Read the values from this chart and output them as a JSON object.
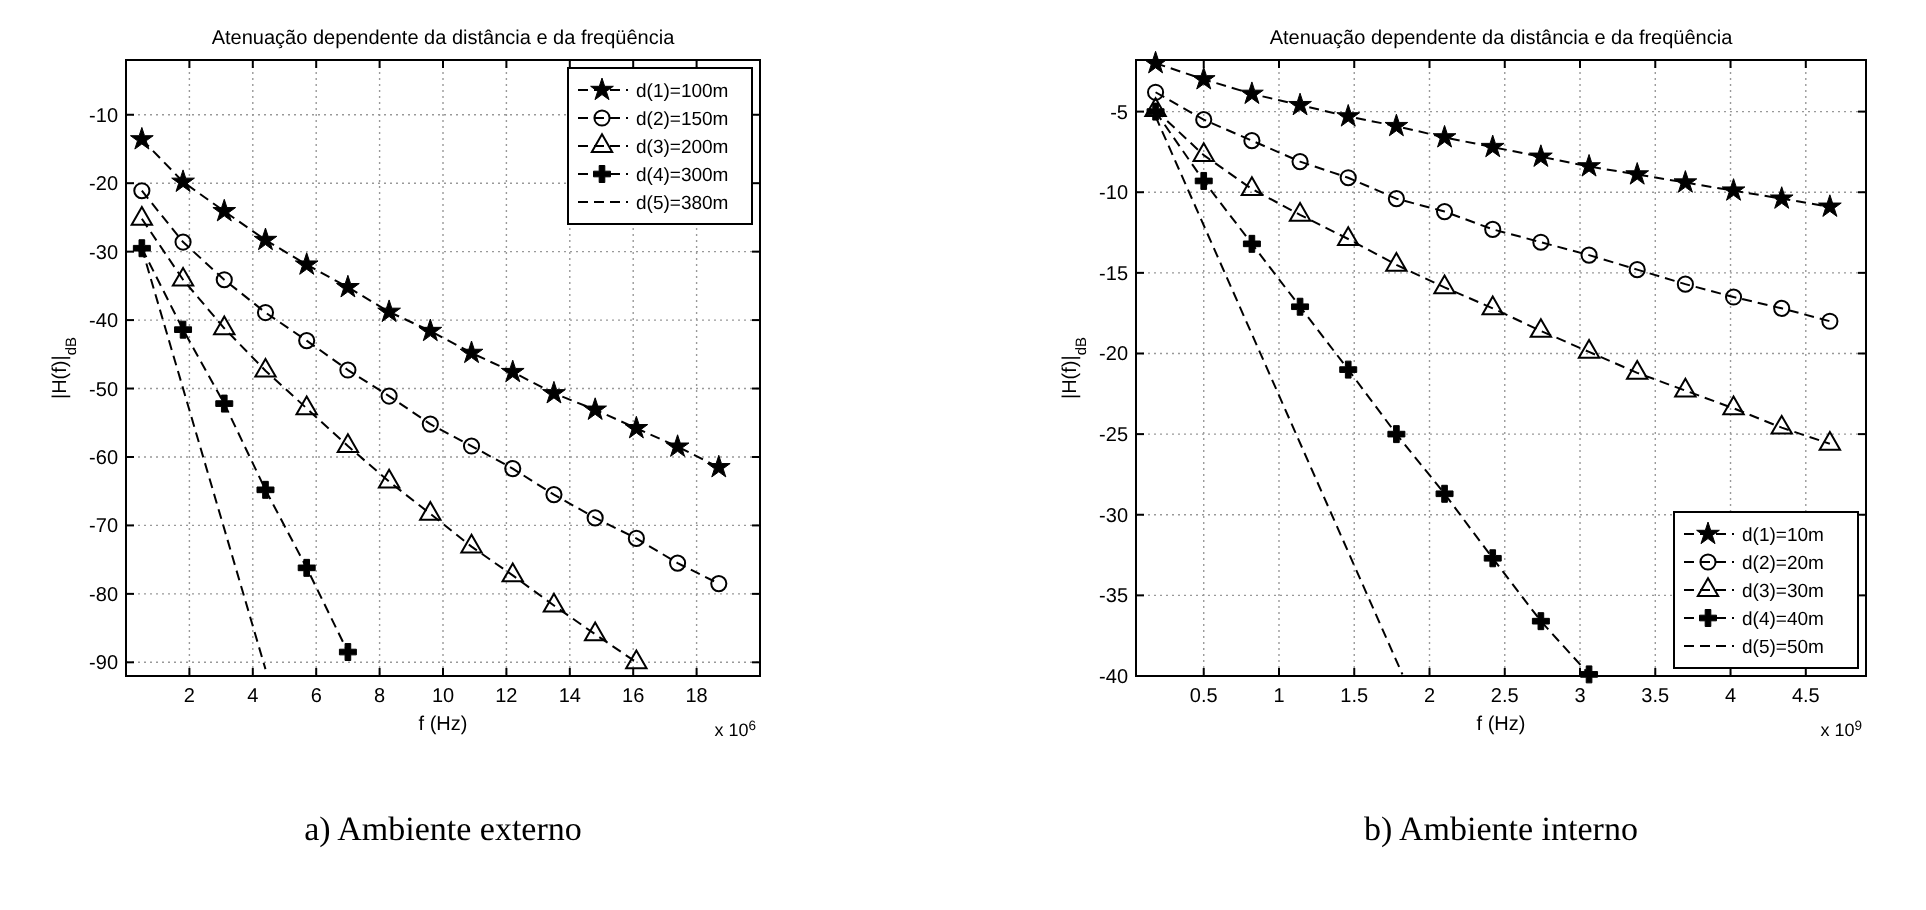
{
  "chart_data": [
    {
      "type": "line",
      "title": "Atenuação dependente da distância e da freqüência",
      "xlabel": "f (Hz)",
      "ylabel": "|H(f)|$_{dB}$",
      "annotations": [
        "x 10$^{6}$",
        "a) Ambiente externo"
      ],
      "xlim": [
        0,
        20
      ],
      "ylim": [
        -92,
        -2
      ],
      "xticks": [
        2,
        4,
        6,
        8,
        10,
        12,
        14,
        16,
        18
      ],
      "yticks": [
        -10,
        -20,
        -30,
        -40,
        -50,
        -60,
        -70,
        -80,
        -90
      ],
      "grid": true,
      "legend": "top right",
      "line_style": "dashed",
      "series": [
        {
          "name": "d(1)=100m",
          "color": "#000000",
          "marker": "star",
          "x": [
            0.5,
            1.8,
            3.1,
            4.4,
            5.7,
            7.0,
            8.3,
            9.6,
            10.9,
            12.2,
            13.5,
            14.8,
            16.1,
            17.4,
            18.7
          ],
          "values": [
            -13.6,
            -19.8,
            -24.1,
            -28.3,
            -31.9,
            -35.2,
            -38.8,
            -41.6,
            -44.8,
            -47.6,
            -50.7,
            -53.1,
            -55.8,
            -58.5,
            -61.5
          ]
        },
        {
          "name": "d(2)=150m",
          "color": "#000000",
          "marker": "circle",
          "x": [
            0.5,
            1.8,
            3.1,
            4.4,
            5.7,
            7.0,
            8.3,
            9.6,
            10.9,
            12.2,
            13.5,
            14.8,
            16.1,
            17.4,
            18.7
          ],
          "values": [
            -21.1,
            -28.6,
            -34.1,
            -38.9,
            -43.0,
            -47.3,
            -51.1,
            -55.2,
            -58.4,
            -61.7,
            -65.5,
            -68.9,
            -71.9,
            -75.5,
            -78.5
          ]
        },
        {
          "name": "d(3)=200m",
          "color": "#000000",
          "marker": "triangle",
          "x": [
            0.5,
            1.8,
            3.1,
            4.4,
            5.7,
            7.0,
            8.3,
            9.6,
            10.9,
            12.2,
            13.5,
            14.8,
            16.1
          ],
          "values": [
            -25.2,
            -34.1,
            -41.2,
            -47.4,
            -52.9,
            -58.4,
            -63.6,
            -68.3,
            -73.1,
            -77.3,
            -81.7,
            -85.9,
            -90.0
          ]
        },
        {
          "name": "d(4)=300m",
          "color": "#000000",
          "marker": "cross",
          "x": [
            0.5,
            1.8,
            3.1,
            4.4,
            5.7,
            7.0
          ],
          "values": [
            -29.5,
            -41.4,
            -52.2,
            -64.8,
            -76.2,
            -88.5
          ]
        },
        {
          "name": "d(5)=380m",
          "color": "#000000",
          "marker": "none",
          "x": [
            0.5,
            4.4
          ],
          "values": [
            -29.5,
            -91.0
          ]
        }
      ]
    },
    {
      "type": "line",
      "title": "Atenuação dependente da distância e da freqüência",
      "xlabel": "f (Hz)",
      "ylabel": "|H(f)|$_{dB}$",
      "annotations": [
        "x 10$^{9}$",
        "b) Ambiente interno"
      ],
      "xlim": [
        0.05,
        4.9
      ],
      "ylim": [
        -40,
        -1.8
      ],
      "xticks": [
        0.5,
        1,
        1.5,
        2,
        2.5,
        3,
        3.5,
        4,
        4.5
      ],
      "yticks": [
        -5,
        -10,
        -15,
        -20,
        -25,
        -30,
        -35,
        -40
      ],
      "grid": true,
      "legend": "bottom right",
      "line_style": "dashed",
      "series": [
        {
          "name": "d(1)=10m",
          "color": "#000000",
          "marker": "star",
          "x": [
            0.18,
            0.5,
            0.82,
            1.14,
            1.46,
            1.78,
            2.1,
            2.42,
            2.74,
            3.06,
            3.38,
            3.7,
            4.02,
            4.34,
            4.66
          ],
          "values": [
            -2.0,
            -3.0,
            -3.9,
            -4.6,
            -5.3,
            -5.9,
            -6.6,
            -7.2,
            -7.8,
            -8.4,
            -8.9,
            -9.4,
            -9.9,
            -10.4,
            -10.9
          ]
        },
        {
          "name": "d(2)=20m",
          "color": "#000000",
          "marker": "circle",
          "x": [
            0.18,
            0.5,
            0.82,
            1.14,
            1.46,
            1.78,
            2.1,
            2.42,
            2.74,
            3.06,
            3.38,
            3.7,
            4.02,
            4.34,
            4.66
          ],
          "values": [
            -3.8,
            -5.5,
            -6.8,
            -8.1,
            -9.1,
            -10.4,
            -11.2,
            -12.3,
            -13.1,
            -13.9,
            -14.8,
            -15.7,
            -16.5,
            -17.2,
            -18.0
          ]
        },
        {
          "name": "d(3)=30m",
          "color": "#000000",
          "marker": "triangle",
          "x": [
            0.18,
            0.5,
            0.82,
            1.14,
            1.46,
            1.78,
            2.1,
            2.42,
            2.74,
            3.06,
            3.38,
            3.7,
            4.02,
            4.34,
            4.66
          ],
          "values": [
            -4.9,
            -7.7,
            -9.8,
            -11.4,
            -12.9,
            -14.5,
            -15.9,
            -17.2,
            -18.6,
            -19.9,
            -21.2,
            -22.3,
            -23.4,
            -24.6,
            -25.6
          ]
        },
        {
          "name": "d(4)=40m",
          "color": "#000000",
          "marker": "cross",
          "x": [
            0.18,
            0.5,
            0.82,
            1.14,
            1.46,
            1.78,
            2.1,
            2.42,
            2.74,
            3.06
          ],
          "values": [
            -5.0,
            -9.3,
            -13.2,
            -17.1,
            -21.0,
            -25.0,
            -28.7,
            -32.7,
            -36.6,
            -39.9
          ]
        },
        {
          "name": "d(5)=50m",
          "color": "#000000",
          "marker": "none",
          "x": [
            0.18,
            1.82
          ],
          "values": [
            -5.3,
            -39.9
          ]
        }
      ]
    }
  ]
}
